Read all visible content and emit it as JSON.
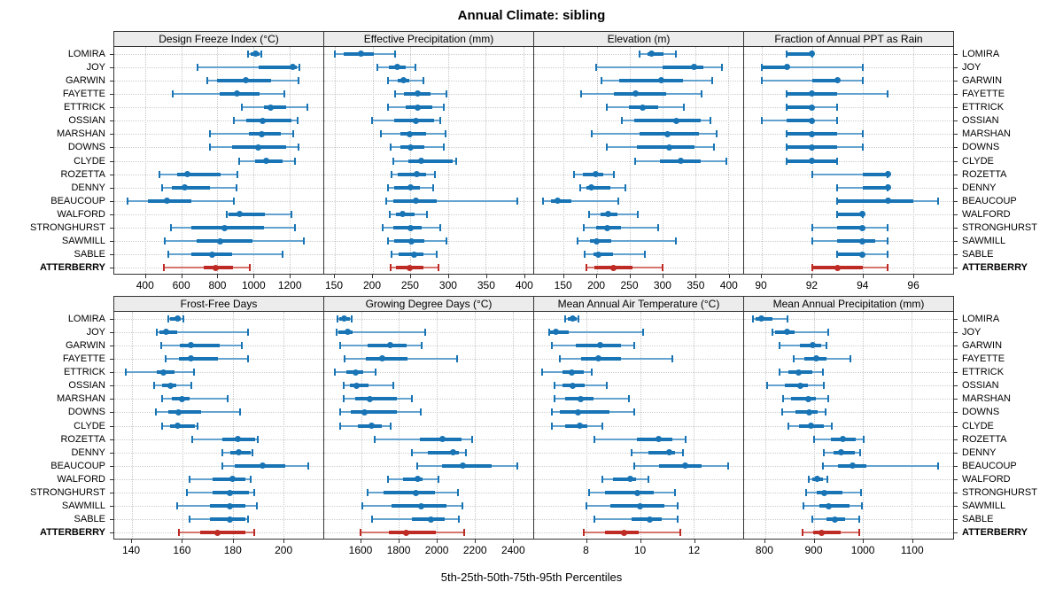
{
  "title": "Annual Climate: sibling",
  "footer": "5th-25th-50th-75th-95th Percentiles",
  "highlight_site": "ATTERBERRY",
  "sites": [
    "LOMIRA",
    "JOY",
    "GARWIN",
    "FAYETTE",
    "ETTRICK",
    "OSSIAN",
    "MARSHAN",
    "DOWNS",
    "CLYDE",
    "ROZETTA",
    "DENNY",
    "BEAUCOUP",
    "WALFORD",
    "STRONGHURST",
    "SAWMILL",
    "SABLE",
    "ATTERBERRY"
  ],
  "colors": {
    "series": "#1874B4",
    "series_light": "#64A3CF",
    "highlight": "#BE2B25",
    "highlight_light": "#D4766E",
    "grid": "#C9C9C9",
    "strip_bg": "#ECECEC",
    "border": "#333333"
  },
  "chart_data": {
    "type": "dotplot-percentiles",
    "percentile_labels": [
      "5th",
      "25th",
      "50th",
      "75th",
      "95th"
    ],
    "layout": {
      "rows": 2,
      "cols": 4,
      "grid": "dotted",
      "legend_position": "none"
    },
    "panels": [
      {
        "title": "Design Freeze Index (°C)",
        "xlim": [
          225,
          1390
        ],
        "ticks": [
          400,
          600,
          800,
          1000,
          1200
        ],
        "values": [
          [
            970,
            985,
            1010,
            1035,
            1045
          ],
          [
            690,
            1030,
            1220,
            1240,
            1255
          ],
          [
            745,
            800,
            960,
            1100,
            1250
          ],
          [
            550,
            810,
            910,
            1035,
            1175
          ],
          [
            935,
            1060,
            1095,
            1185,
            1300
          ],
          [
            890,
            960,
            1050,
            1210,
            1245
          ],
          [
            760,
            975,
            1045,
            1155,
            1220
          ],
          [
            760,
            880,
            1025,
            1185,
            1250
          ],
          [
            920,
            1010,
            1070,
            1165,
            1230
          ],
          [
            475,
            575,
            630,
            815,
            910
          ],
          [
            490,
            545,
            615,
            760,
            905
          ],
          [
            300,
            415,
            520,
            655,
            890
          ],
          [
            850,
            860,
            925,
            1065,
            1210
          ],
          [
            540,
            655,
            840,
            1060,
            1230
          ],
          [
            505,
            685,
            815,
            995,
            1280
          ],
          [
            525,
            655,
            770,
            880,
            1165
          ],
          [
            500,
            725,
            790,
            885,
            980
          ]
        ]
      },
      {
        "title": "Effective Precipitation (mm)",
        "xlim": [
          136,
          413
        ],
        "ticks": [
          150,
          200,
          250,
          300,
          350,
          400
        ],
        "values": [
          [
            150,
            162,
            185,
            202,
            230
          ],
          [
            206,
            222,
            233,
            244,
            257
          ],
          [
            221,
            233,
            241,
            249,
            267
          ],
          [
            230,
            242,
            260,
            277,
            298
          ],
          [
            220,
            244,
            260,
            279,
            295
          ],
          [
            199,
            229,
            258,
            281,
            290
          ],
          [
            211,
            237,
            249,
            271,
            297
          ],
          [
            224,
            237,
            250,
            269,
            295
          ],
          [
            227,
            248,
            265,
            306,
            311
          ],
          [
            225,
            234,
            259,
            271,
            283
          ],
          [
            221,
            229,
            250,
            263,
            280
          ],
          [
            218,
            227,
            258,
            285,
            392
          ],
          [
            223,
            231,
            240,
            256,
            272
          ],
          [
            213,
            227,
            250,
            265,
            290
          ],
          [
            221,
            229,
            252,
            269,
            298
          ],
          [
            225,
            235,
            255,
            267,
            285
          ],
          [
            224,
            231,
            249,
            267,
            287
          ]
        ]
      },
      {
        "title": "Elevation (m)",
        "xlim": [
          105,
          423
        ],
        "ticks": [
          150,
          200,
          250,
          300,
          350,
          400
        ],
        "values": [
          [
            265,
            277,
            283,
            302,
            321
          ],
          [
            199,
            300,
            348,
            363,
            390
          ],
          [
            207,
            235,
            298,
            332,
            376
          ],
          [
            177,
            226,
            259,
            306,
            360
          ],
          [
            215,
            249,
            270,
            293,
            333
          ],
          [
            239,
            257,
            321,
            358,
            373
          ],
          [
            192,
            266,
            308,
            355,
            382
          ],
          [
            215,
            261,
            311,
            349,
            379
          ],
          [
            259,
            297,
            328,
            358,
            398
          ],
          [
            166,
            179,
            198,
            210,
            226
          ],
          [
            175,
            185,
            192,
            221,
            244
          ],
          [
            118,
            130,
            141,
            161,
            233
          ],
          [
            189,
            206,
            217,
            231,
            262
          ],
          [
            181,
            199,
            216,
            237,
            293
          ],
          [
            171,
            190,
            200,
            222,
            321
          ],
          [
            182,
            195,
            203,
            225,
            273
          ],
          [
            185,
            197,
            225,
            254,
            301
          ]
        ]
      },
      {
        "title": "Fraction of Annual PPT as Rain",
        "xlim": [
          89.3,
          97.6
        ],
        "ticks": [
          90,
          92,
          94,
          96
        ],
        "values": [
          [
            91,
            91,
            92,
            92,
            92
          ],
          [
            90,
            90,
            91,
            91,
            94
          ],
          [
            90,
            92,
            93,
            93,
            94
          ],
          [
            91,
            91,
            92,
            93,
            95
          ],
          [
            91,
            91,
            92,
            92,
            93
          ],
          [
            90,
            91,
            92,
            92,
            93
          ],
          [
            91,
            91,
            92,
            93,
            94
          ],
          [
            91,
            91,
            92,
            93,
            94
          ],
          [
            91,
            91,
            92,
            93,
            93
          ],
          [
            92,
            94,
            95,
            95,
            95
          ],
          [
            93,
            94,
            95,
            95,
            95
          ],
          [
            93,
            93,
            95,
            96,
            97
          ],
          [
            93,
            93,
            94,
            94,
            94
          ],
          [
            92,
            93,
            94,
            94,
            95
          ],
          [
            92,
            93,
            94,
            94.5,
            95
          ],
          [
            93,
            93,
            94,
            94,
            95
          ],
          [
            92,
            92,
            93,
            94,
            95
          ]
        ]
      },
      {
        "title": "Frost-Free Days",
        "xlim": [
          133,
          216
        ],
        "ticks": [
          140,
          160,
          180,
          200
        ],
        "values": [
          [
            154.5,
            155,
            158,
            159.5,
            160.5
          ],
          [
            150,
            151,
            153.5,
            158,
            186
          ],
          [
            151.5,
            159,
            163.5,
            175,
            183.5
          ],
          [
            153.5,
            158.5,
            163.5,
            174,
            186
          ],
          [
            137.5,
            150,
            152.5,
            157,
            164.5
          ],
          [
            149,
            152,
            155.5,
            157.5,
            163.5
          ],
          [
            152,
            156,
            160,
            163,
            178
          ],
          [
            149.5,
            154.5,
            158.5,
            167.5,
            183
          ],
          [
            152,
            155,
            158,
            165,
            166
          ],
          [
            164,
            176,
            182,
            189,
            190
          ],
          [
            176,
            179,
            182.5,
            187,
            188
          ],
          [
            176,
            181,
            192,
            201,
            210
          ],
          [
            163,
            172,
            180,
            185,
            187
          ],
          [
            162,
            172,
            179,
            186.5,
            188.5
          ],
          [
            158,
            171,
            179,
            185,
            189.5
          ],
          [
            163,
            171,
            179,
            185,
            186
          ],
          [
            158.5,
            167,
            174,
            185,
            188.5
          ]
        ]
      },
      {
        "title": "Growing Degree Days (°C)",
        "xlim": [
          1405,
          2510
        ],
        "ticks": [
          1600,
          1800,
          2000,
          2200,
          2400
        ],
        "values": [
          [
            1475,
            1485,
            1510,
            1540,
            1550
          ],
          [
            1470,
            1480,
            1530,
            1555,
            1940
          ],
          [
            1490,
            1635,
            1755,
            1840,
            1920
          ],
          [
            1515,
            1625,
            1710,
            1845,
            2105
          ],
          [
            1460,
            1520,
            1570,
            1610,
            1675
          ],
          [
            1510,
            1540,
            1575,
            1640,
            1770
          ],
          [
            1510,
            1570,
            1645,
            1790,
            1870
          ],
          [
            1490,
            1545,
            1620,
            1790,
            1915
          ],
          [
            1490,
            1585,
            1655,
            1710,
            1755
          ],
          [
            1670,
            1910,
            2030,
            2130,
            2185
          ],
          [
            1870,
            1955,
            2085,
            2115,
            2155
          ],
          [
            1895,
            2030,
            2140,
            2290,
            2425
          ],
          [
            1740,
            1820,
            1900,
            1925,
            2010
          ],
          [
            1635,
            1720,
            1890,
            1990,
            2110
          ],
          [
            1605,
            1760,
            1920,
            2050,
            2135
          ],
          [
            1660,
            1870,
            1970,
            2040,
            2115
          ],
          [
            1595,
            1745,
            1840,
            1995,
            2145
          ]
        ]
      },
      {
        "title": "Mean Annual Air Temperature (°C)",
        "xlim": [
          6.05,
          13.85
        ],
        "ticks": [
          8,
          10,
          12
        ],
        "values": [
          [
            7.2,
            7.3,
            7.5,
            7.65,
            7.7
          ],
          [
            6.6,
            6.65,
            6.85,
            7.35,
            10.1
          ],
          [
            6.7,
            7.6,
            8.5,
            9.3,
            9.8
          ],
          [
            7.0,
            7.8,
            8.45,
            9.3,
            11.2
          ],
          [
            6.35,
            7.1,
            7.45,
            7.9,
            8.2
          ],
          [
            6.8,
            7.1,
            7.5,
            7.95,
            8.75
          ],
          [
            6.8,
            7.2,
            7.8,
            8.25,
            9.6
          ],
          [
            6.7,
            7.0,
            7.7,
            8.85,
            9.8
          ],
          [
            6.7,
            7.2,
            7.75,
            8.05,
            8.6
          ],
          [
            8.3,
            9.9,
            10.7,
            11.2,
            11.7
          ],
          [
            9.7,
            10.3,
            11.1,
            11.3,
            11.6
          ],
          [
            9.8,
            10.7,
            11.7,
            12.3,
            13.3
          ],
          [
            8.6,
            9.0,
            9.65,
            9.85,
            10.3
          ],
          [
            8.1,
            8.7,
            9.9,
            10.5,
            11.3
          ],
          [
            8.0,
            8.9,
            10.0,
            10.9,
            11.4
          ],
          [
            8.3,
            9.7,
            10.35,
            10.8,
            11.4
          ],
          [
            7.9,
            8.7,
            9.4,
            9.95,
            11.5
          ]
        ]
      },
      {
        "title": "Mean Annual Precipitation (mm)",
        "xlim": [
          757,
          1185
        ],
        "ticks": [
          800,
          900,
          1000,
          1100
        ],
        "values": [
          [
            775,
            780,
            792,
            815,
            845
          ],
          [
            815,
            820,
            845,
            860,
            930
          ],
          [
            830,
            872,
            898,
            915,
            925
          ],
          [
            858,
            880,
            904,
            925,
            975
          ],
          [
            830,
            848,
            868,
            896,
            918
          ],
          [
            804,
            840,
            872,
            888,
            920
          ],
          [
            836,
            854,
            888,
            904,
            930
          ],
          [
            835,
            862,
            890,
            908,
            924
          ],
          [
            848,
            870,
            894,
            920,
            936
          ],
          [
            900,
            935,
            960,
            985,
            1002
          ],
          [
            920,
            940,
            955,
            983,
            995
          ],
          [
            918,
            950,
            980,
            1007,
            1155
          ],
          [
            890,
            896,
            906,
            918,
            928
          ],
          [
            884,
            906,
            922,
            958,
            996
          ],
          [
            878,
            912,
            931,
            972,
            999
          ],
          [
            896,
            926,
            943,
            964,
            993
          ],
          [
            877,
            898,
            916,
            955,
            993
          ]
        ]
      }
    ]
  }
}
